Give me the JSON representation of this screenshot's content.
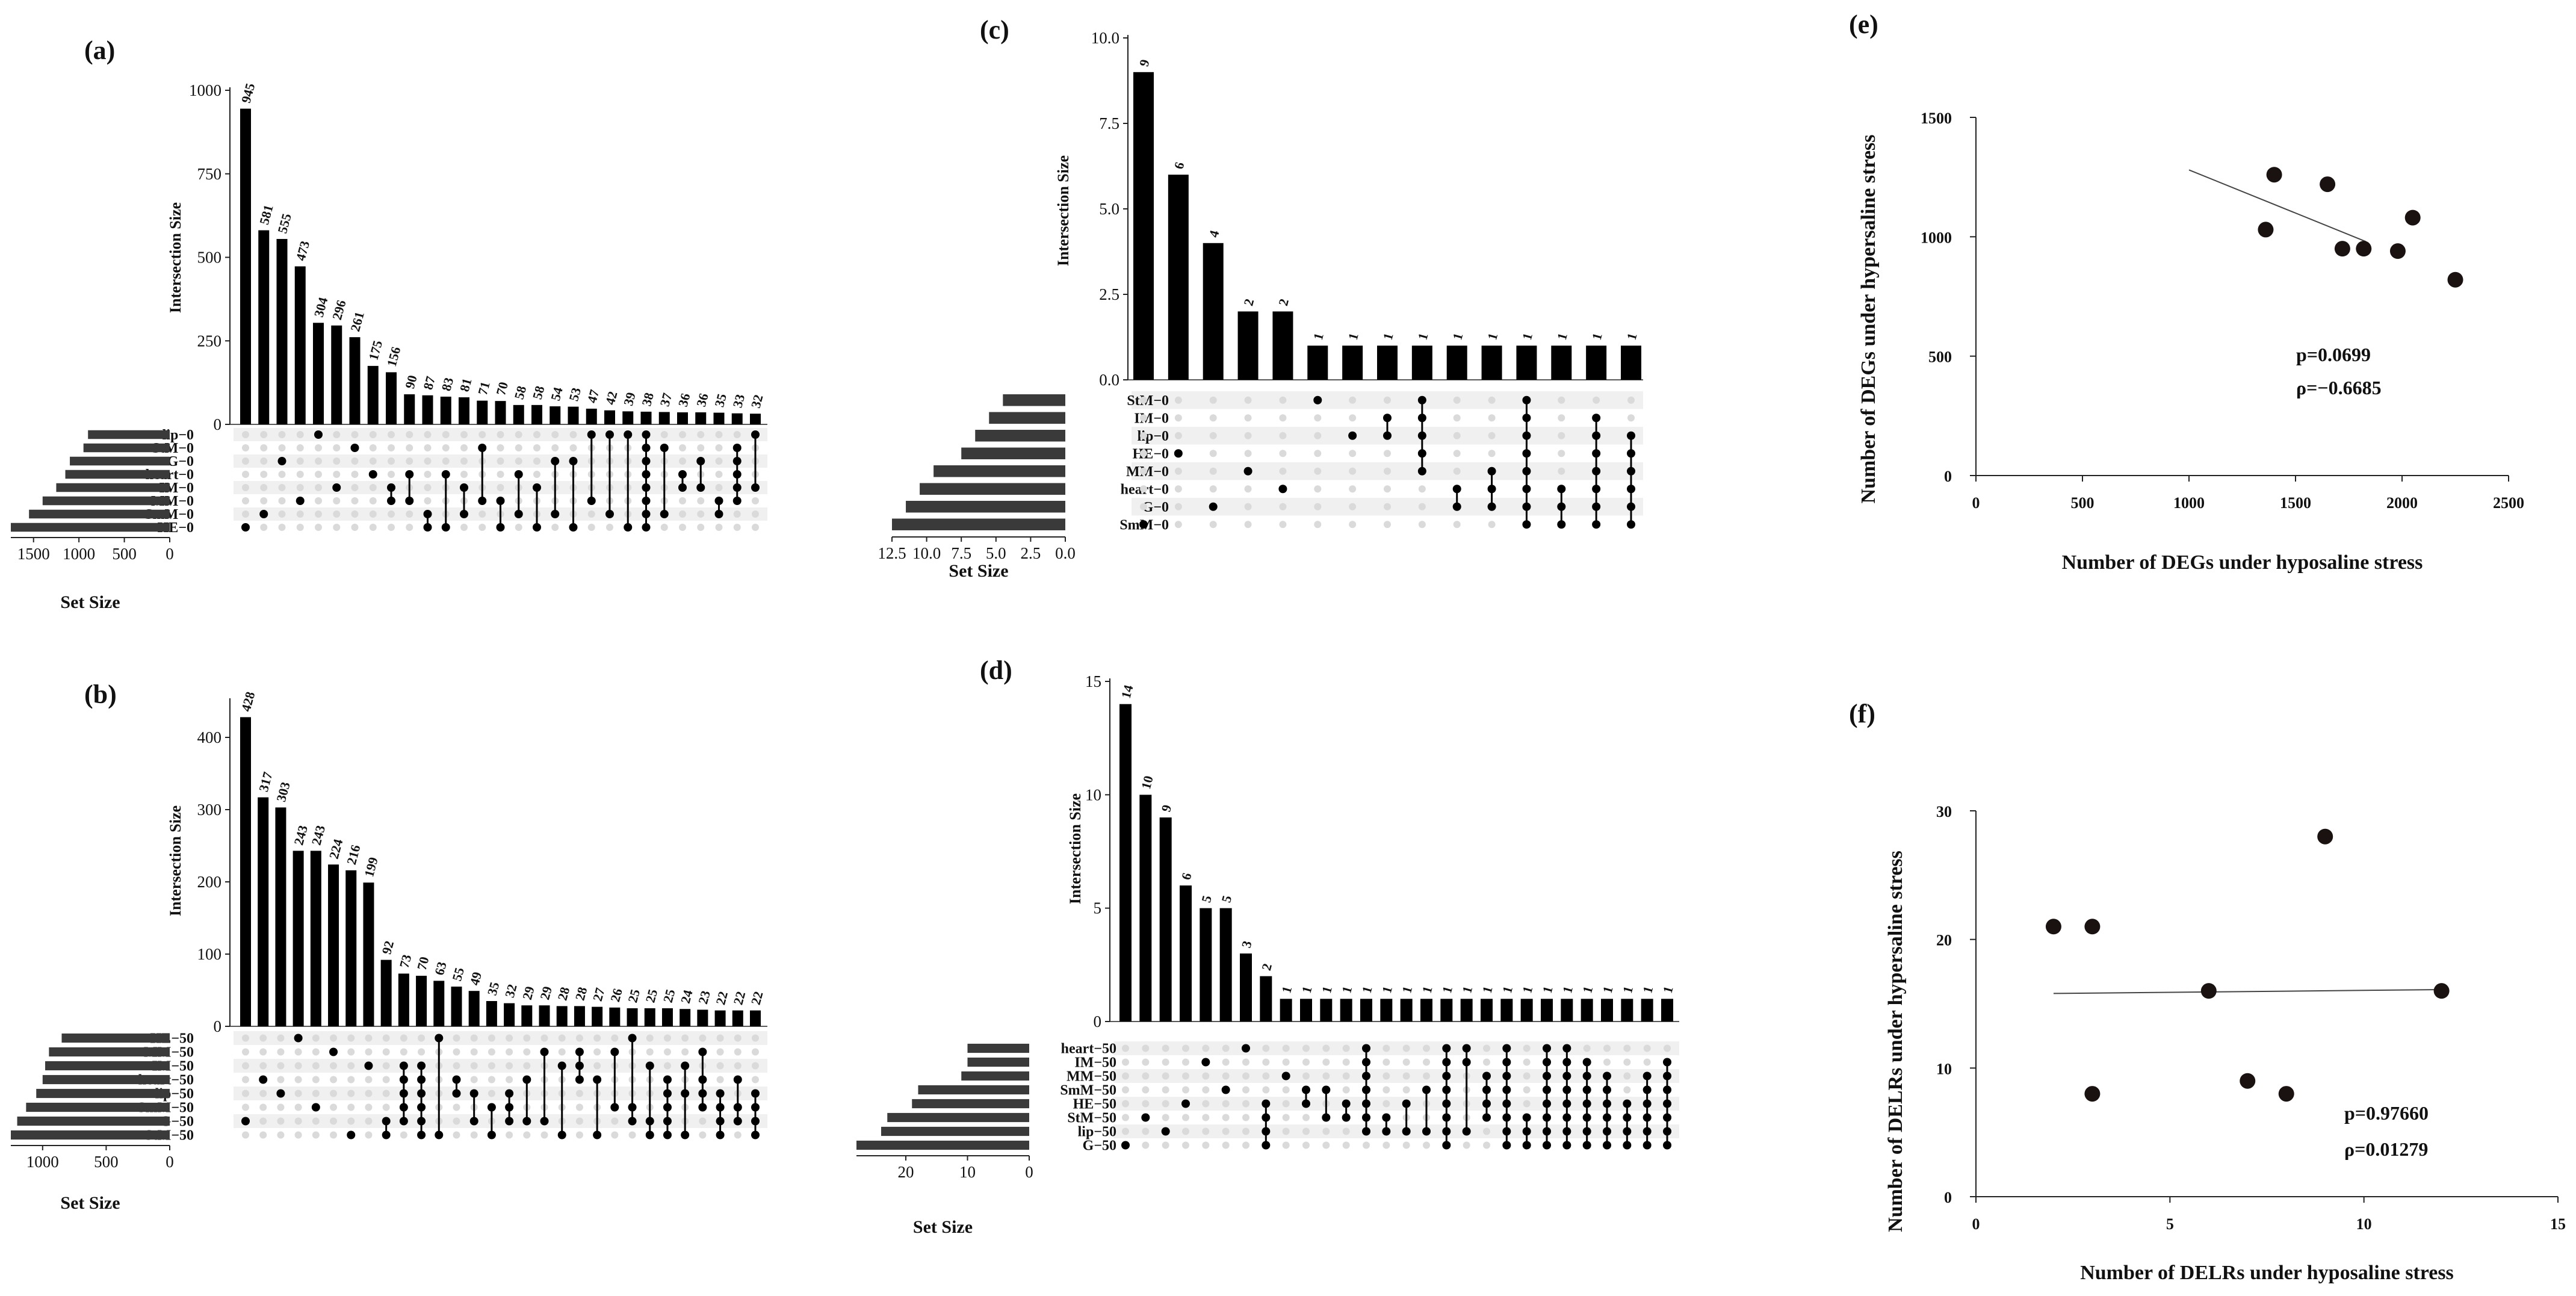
{
  "chart_data": [
    {
      "id": "a",
      "type": "upset",
      "panel_label": "(a)",
      "ylabel": "Intersection Size",
      "xlabel": "Set Size",
      "ylim": [
        0,
        1000
      ],
      "yticks": [
        0,
        250,
        500,
        750,
        1000
      ],
      "set_ticks": [
        1500,
        1000,
        500,
        0
      ],
      "set_max": 1750,
      "sets": [
        "lip−0",
        "StM−0",
        "G−0",
        "heart−0",
        "IM−0",
        "MM−0",
        "SmM−0",
        "HE−0"
      ],
      "set_sizes": [
        900,
        950,
        1100,
        1150,
        1250,
        1400,
        1550,
        1750
      ],
      "intersections": [
        {
          "value": 945,
          "label": "945",
          "sets": [
            7
          ]
        },
        {
          "value": 581,
          "label": "581",
          "sets": [
            6
          ]
        },
        {
          "value": 555,
          "label": "555",
          "sets": [
            2
          ]
        },
        {
          "value": 473,
          "label": "473",
          "sets": [
            5
          ]
        },
        {
          "value": 304,
          "label": "304",
          "sets": [
            0
          ]
        },
        {
          "value": 296,
          "label": "296",
          "sets": [
            4
          ]
        },
        {
          "value": 261,
          "label": "261",
          "sets": [
            1
          ]
        },
        {
          "value": 175,
          "label": "175",
          "sets": [
            3
          ]
        },
        {
          "value": 156,
          "label": "156",
          "sets": [
            4,
            5
          ]
        },
        {
          "value": 90,
          "label": "90",
          "sets": [
            3,
            5
          ]
        },
        {
          "value": 87,
          "label": "87",
          "sets": [
            6,
            7
          ]
        },
        {
          "value": 83,
          "label": "83",
          "sets": [
            3,
            7
          ]
        },
        {
          "value": 81,
          "label": "81",
          "sets": [
            4,
            6
          ]
        },
        {
          "value": 71,
          "label": "71",
          "sets": [
            1,
            5
          ]
        },
        {
          "value": 70,
          "label": "70",
          "sets": [
            5,
            7
          ]
        },
        {
          "value": 58,
          "label": "58",
          "sets": [
            3,
            6
          ]
        },
        {
          "value": 58,
          "label": "58",
          "sets": [
            4,
            7
          ]
        },
        {
          "value": 54,
          "label": "54",
          "sets": [
            2,
            6
          ]
        },
        {
          "value": 53,
          "label": "53",
          "sets": [
            2,
            7
          ]
        },
        {
          "value": 47,
          "label": "47",
          "sets": [
            0,
            5
          ]
        },
        {
          "value": 42,
          "label": "42",
          "sets": [
            0,
            6
          ]
        },
        {
          "value": 39,
          "label": "39",
          "sets": [
            0,
            7
          ]
        },
        {
          "value": 38,
          "label": "38",
          "sets": [
            0,
            1,
            2,
            3,
            4,
            5,
            6,
            7
          ]
        },
        {
          "value": 37,
          "label": "37",
          "sets": [
            1,
            6
          ]
        },
        {
          "value": 36,
          "label": "36",
          "sets": [
            3,
            4
          ]
        },
        {
          "value": 36,
          "label": "36",
          "sets": [
            2,
            4
          ]
        },
        {
          "value": 35,
          "label": "35",
          "sets": [
            5,
            6
          ]
        },
        {
          "value": 33,
          "label": "33",
          "sets": [
            1,
            2,
            3,
            4,
            5
          ]
        },
        {
          "value": 32,
          "label": "32",
          "sets": [
            0,
            4
          ]
        }
      ]
    },
    {
      "id": "b",
      "type": "upset",
      "panel_label": "(b)",
      "ylabel": "Intersection Size",
      "xlabel": "Set Size",
      "ylim": [
        0,
        450
      ],
      "yticks": [
        0,
        100,
        200,
        300,
        400
      ],
      "set_ticks": [
        1000,
        500,
        0
      ],
      "set_max": 1250,
      "sets": [
        "HE−50",
        "MM−50",
        "IM−50",
        "heart−50",
        "lip−50",
        "SmM−50",
        "G−50",
        "StM−50"
      ],
      "set_sizes": [
        850,
        950,
        980,
        1000,
        1050,
        1130,
        1200,
        1250
      ],
      "intersections": [
        {
          "value": 428,
          "label": "428",
          "sets": [
            6
          ]
        },
        {
          "value": 317,
          "label": "317",
          "sets": [
            3
          ]
        },
        {
          "value": 303,
          "label": "303",
          "sets": [
            4
          ]
        },
        {
          "value": 243,
          "label": "243",
          "sets": [
            0
          ]
        },
        {
          "value": 243,
          "label": "243",
          "sets": [
            5
          ]
        },
        {
          "value": 224,
          "label": "224",
          "sets": [
            1
          ]
        },
        {
          "value": 216,
          "label": "216",
          "sets": [
            7
          ]
        },
        {
          "value": 199,
          "label": "199",
          "sets": [
            2
          ]
        },
        {
          "value": 92,
          "label": "92",
          "sets": [
            6,
            7
          ]
        },
        {
          "value": 73,
          "label": "73",
          "sets": [
            2,
            3,
            4,
            5,
            6
          ]
        },
        {
          "value": 70,
          "label": "70",
          "sets": [
            2,
            3,
            4,
            5,
            6,
            7
          ]
        },
        {
          "value": 63,
          "label": "63",
          "sets": [
            0,
            7
          ]
        },
        {
          "value": 55,
          "label": "55",
          "sets": [
            3,
            4
          ]
        },
        {
          "value": 49,
          "label": "49",
          "sets": [
            4,
            6
          ]
        },
        {
          "value": 35,
          "label": "35",
          "sets": [
            5,
            7
          ]
        },
        {
          "value": 32,
          "label": "32",
          "sets": [
            4,
            5,
            6
          ]
        },
        {
          "value": 29,
          "label": "29",
          "sets": [
            3,
            6
          ]
        },
        {
          "value": 29,
          "label": "29",
          "sets": [
            1,
            6
          ]
        },
        {
          "value": 28,
          "label": "28",
          "sets": [
            2,
            7
          ]
        },
        {
          "value": 28,
          "label": "28",
          "sets": [
            1,
            2,
            3
          ]
        },
        {
          "value": 27,
          "label": "27",
          "sets": [
            3,
            7
          ]
        },
        {
          "value": 26,
          "label": "26",
          "sets": [
            1,
            5
          ]
        },
        {
          "value": 25,
          "label": "25",
          "sets": [
            0,
            5,
            6
          ]
        },
        {
          "value": 25,
          "label": "25",
          "sets": [
            2,
            6,
            7
          ]
        },
        {
          "value": 25,
          "label": "25",
          "sets": [
            3,
            4,
            5,
            6,
            7
          ]
        },
        {
          "value": 24,
          "label": "24",
          "sets": [
            2,
            4,
            7
          ]
        },
        {
          "value": 23,
          "label": "23",
          "sets": [
            1,
            3,
            4,
            5
          ]
        },
        {
          "value": 22,
          "label": "22",
          "sets": [
            4,
            5,
            6,
            7
          ]
        },
        {
          "value": 22,
          "label": "22",
          "sets": [
            3,
            5,
            6
          ]
        },
        {
          "value": 22,
          "label": "22",
          "sets": [
            4,
            5,
            6,
            7
          ]
        }
      ]
    },
    {
      "id": "c",
      "type": "upset",
      "panel_label": "(c)",
      "ylabel": "Intersection Size",
      "xlabel": "Set Size",
      "ylim": [
        0,
        10
      ],
      "yticks": [
        0.0,
        2.5,
        5.0,
        7.5,
        10.0
      ],
      "ytick_labels": [
        "0.0",
        "2.5",
        "5.0",
        "7.5",
        "10.0"
      ],
      "set_ticks": [
        12.5,
        10.0,
        7.5,
        5.0,
        2.5,
        0.0
      ],
      "set_tick_labels": [
        "12.5",
        "10.0",
        "7.5",
        "5.0",
        "2.5",
        "0.0"
      ],
      "set_max": 12.5,
      "sets": [
        "StM−0",
        "IM−0",
        "lip−0",
        "HE−0",
        "MM−0",
        "heart−0",
        "G−0",
        "SmM−0"
      ],
      "set_sizes": [
        4.5,
        5.5,
        6.5,
        7.5,
        9.5,
        10.5,
        11.5,
        12.5
      ],
      "intersections": [
        {
          "value": 9,
          "label": "9",
          "sets": [
            7
          ]
        },
        {
          "value": 6,
          "label": "6",
          "sets": [
            3
          ]
        },
        {
          "value": 4,
          "label": "4",
          "sets": [
            6
          ]
        },
        {
          "value": 2,
          "label": "2",
          "sets": [
            4
          ]
        },
        {
          "value": 2,
          "label": "2",
          "sets": [
            5
          ]
        },
        {
          "value": 1,
          "label": "1",
          "sets": [
            0
          ]
        },
        {
          "value": 1,
          "label": "1",
          "sets": [
            2
          ]
        },
        {
          "value": 1,
          "label": "1",
          "sets": [
            1,
            2
          ]
        },
        {
          "value": 1,
          "label": "1",
          "sets": [
            0,
            1,
            2,
            3,
            4
          ]
        },
        {
          "value": 1,
          "label": "1",
          "sets": [
            5,
            6
          ]
        },
        {
          "value": 1,
          "label": "1",
          "sets": [
            4,
            5,
            6
          ]
        },
        {
          "value": 1,
          "label": "1",
          "sets": [
            0,
            1,
            2,
            3,
            4,
            5,
            6,
            7
          ]
        },
        {
          "value": 1,
          "label": "1",
          "sets": [
            5,
            6,
            7
          ]
        },
        {
          "value": 1,
          "label": "1",
          "sets": [
            1,
            2,
            3,
            4,
            5,
            6,
            7
          ]
        },
        {
          "value": 1,
          "label": "1",
          "sets": [
            2,
            3,
            4,
            5,
            6,
            7
          ]
        }
      ]
    },
    {
      "id": "d",
      "type": "upset",
      "panel_label": "(d)",
      "ylabel": "Intersection Size",
      "xlabel": "Set Size",
      "ylim": [
        0,
        15
      ],
      "yticks": [
        0,
        5,
        10,
        15
      ],
      "set_ticks": [
        20,
        10,
        0
      ],
      "set_max": 28,
      "sets": [
        "heart−50",
        "IM−50",
        "MM−50",
        "SmM−50",
        "HE−50",
        "StM−50",
        "lip−50",
        "G−50"
      ],
      "set_sizes": [
        10,
        10,
        11,
        18,
        19,
        23,
        24,
        28
      ],
      "intersections": [
        {
          "value": 14,
          "label": "14",
          "sets": [
            7
          ]
        },
        {
          "value": 10,
          "label": "10",
          "sets": [
            5
          ]
        },
        {
          "value": 9,
          "label": "9",
          "sets": [
            6
          ]
        },
        {
          "value": 6,
          "label": "6",
          "sets": [
            4
          ]
        },
        {
          "value": 5,
          "label": "5",
          "sets": [
            1
          ]
        },
        {
          "value": 5,
          "label": "5",
          "sets": [
            3
          ]
        },
        {
          "value": 3,
          "label": "3",
          "sets": [
            0
          ]
        },
        {
          "value": 2,
          "label": "2",
          "sets": [
            4,
            5,
            6,
            7
          ]
        },
        {
          "value": 1,
          "label": "1",
          "sets": [
            2
          ]
        },
        {
          "value": 1,
          "label": "1",
          "sets": [
            3,
            4
          ]
        },
        {
          "value": 1,
          "label": "1",
          "sets": [
            3,
            5
          ]
        },
        {
          "value": 1,
          "label": "1",
          "sets": [
            4,
            5
          ]
        },
        {
          "value": 1,
          "label": "1",
          "sets": [
            0,
            1,
            2,
            3,
            4,
            5,
            6
          ]
        },
        {
          "value": 1,
          "label": "1",
          "sets": [
            5,
            6
          ]
        },
        {
          "value": 1,
          "label": "1",
          "sets": [
            4,
            6
          ]
        },
        {
          "value": 1,
          "label": "1",
          "sets": [
            3,
            6
          ]
        },
        {
          "value": 1,
          "label": "1",
          "sets": [
            0,
            1,
            2,
            3,
            4,
            5,
            6,
            7
          ]
        },
        {
          "value": 1,
          "label": "1",
          "sets": [
            0,
            1,
            6
          ]
        },
        {
          "value": 1,
          "label": "1",
          "sets": [
            2,
            3,
            4,
            5
          ]
        },
        {
          "value": 1,
          "label": "1",
          "sets": [
            0,
            1,
            2,
            3,
            4,
            5,
            6,
            7
          ]
        },
        {
          "value": 1,
          "label": "1",
          "sets": [
            5,
            6,
            7
          ]
        },
        {
          "value": 1,
          "label": "1",
          "sets": [
            0,
            1,
            2,
            3,
            4,
            5,
            6,
            7
          ]
        },
        {
          "value": 1,
          "label": "1",
          "sets": [
            0,
            1,
            2,
            3,
            4,
            5,
            6,
            7
          ]
        },
        {
          "value": 1,
          "label": "1",
          "sets": [
            1,
            2,
            3,
            4,
            5,
            6,
            7
          ]
        },
        {
          "value": 1,
          "label": "1",
          "sets": [
            2,
            3,
            4,
            5,
            6,
            7
          ]
        },
        {
          "value": 1,
          "label": "1",
          "sets": [
            4,
            5,
            6,
            7
          ]
        },
        {
          "value": 1,
          "label": "1",
          "sets": [
            2,
            3,
            4,
            5,
            6,
            7
          ]
        },
        {
          "value": 1,
          "label": "1",
          "sets": [
            1,
            2,
            3,
            4,
            5,
            6,
            7
          ]
        }
      ]
    },
    {
      "id": "e",
      "type": "scatter",
      "panel_label": "(e)",
      "xlabel": "Number of DEGs under hyposaline stress",
      "ylabel": "Number of DEGs under hypersaline stress",
      "xlim": [
        0,
        2500
      ],
      "ylim": [
        0,
        1500
      ],
      "xticks": [
        0,
        500,
        1000,
        1500,
        2000,
        2500
      ],
      "yticks": [
        0,
        500,
        1000,
        1500
      ],
      "points": [
        [
          1360,
          1030
        ],
        [
          1400,
          1260
        ],
        [
          1650,
          1220
        ],
        [
          1720,
          950
        ],
        [
          1820,
          950
        ],
        [
          1980,
          940
        ],
        [
          2050,
          1080
        ],
        [
          2250,
          820
        ]
      ],
      "trendline": [
        [
          1000,
          1280
        ],
        [
          1830,
          980
        ]
      ],
      "annotations": [
        "p=0.0699",
        "ρ=−0.6685"
      ]
    },
    {
      "id": "f",
      "type": "scatter",
      "panel_label": "(f)",
      "xlabel": "Number of DELRs under hyposaline stress",
      "ylabel": "Number of DELRs under hypersaline stress",
      "xlim": [
        0,
        15
      ],
      "ylim": [
        0,
        30
      ],
      "xticks": [
        0,
        5,
        10,
        15
      ],
      "yticks": [
        0,
        10,
        20,
        30
      ],
      "points": [
        [
          2,
          21
        ],
        [
          3,
          21
        ],
        [
          3,
          8
        ],
        [
          6,
          16
        ],
        [
          7,
          9
        ],
        [
          8,
          8
        ],
        [
          9,
          28
        ],
        [
          12,
          16
        ]
      ],
      "trendline": [
        [
          2,
          15.8
        ],
        [
          12,
          16.1
        ]
      ],
      "annotations": [
        "p=0.97660",
        "ρ=0.01279"
      ]
    }
  ]
}
